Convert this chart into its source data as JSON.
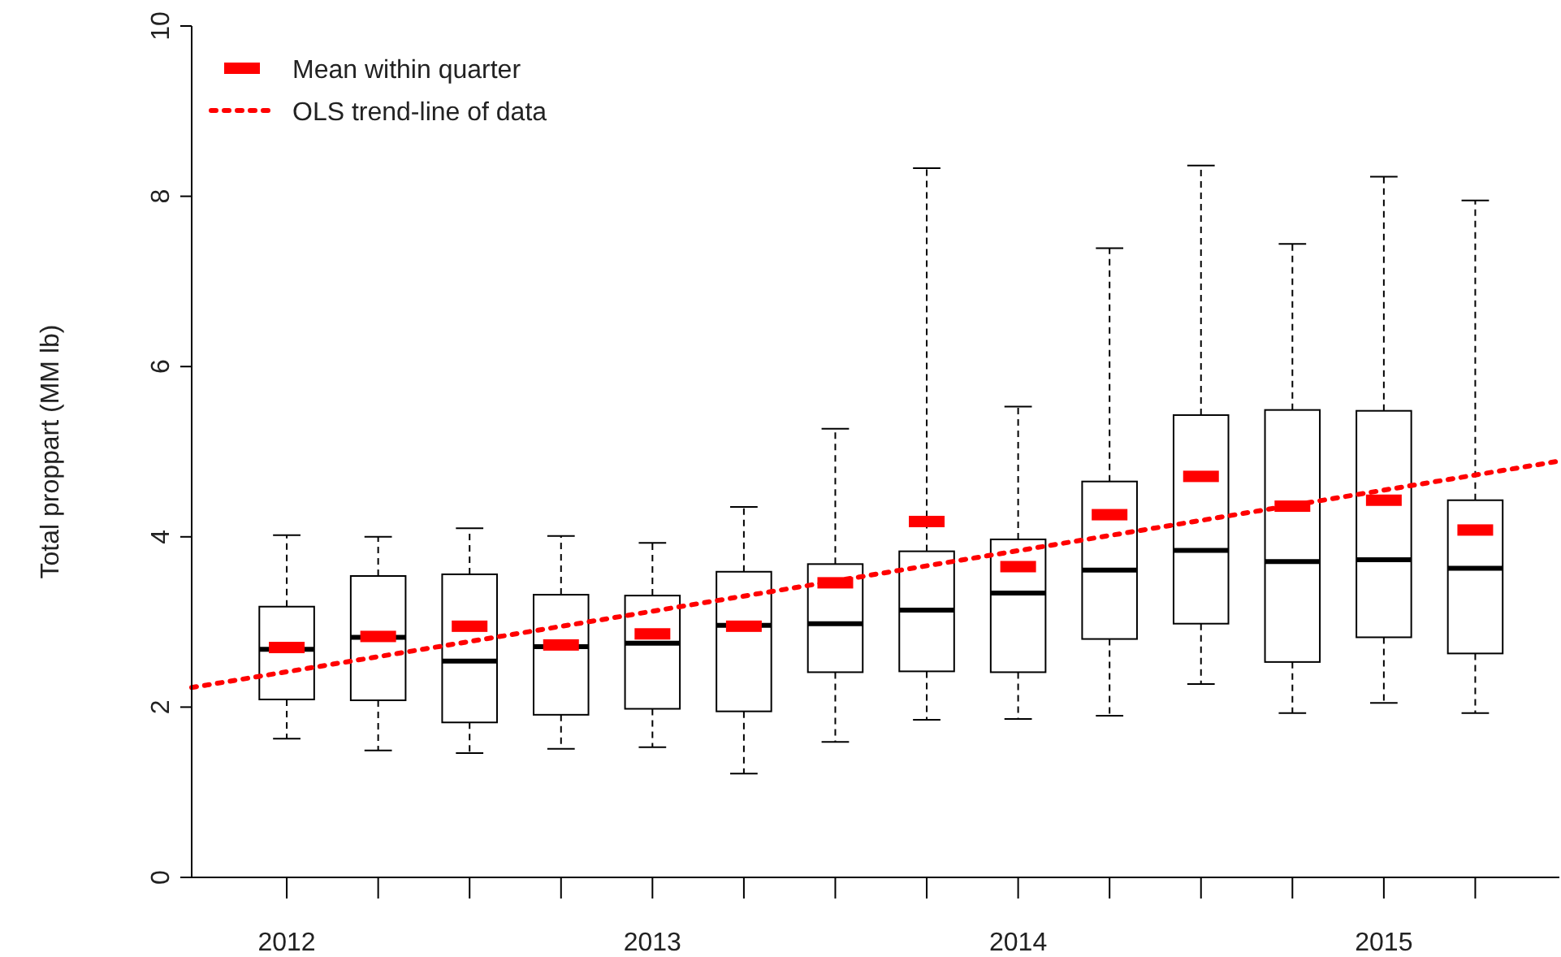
{
  "chart_data": {
    "type": "box",
    "ylabel": "Total proppart (MM lb)",
    "x": [
      2012,
      2012.25,
      2012.5,
      2012.75,
      2013,
      2013.25,
      2013.5,
      2013.75,
      2014,
      2014.25,
      2014.5,
      2014.75,
      2015,
      2015.25
    ],
    "xlim": [
      2011.74,
      2015.48
    ],
    "xticks": [
      2012,
      {
        "value": 2012.25,
        "label": null
      },
      {
        "value": 2012.5,
        "label": null
      },
      {
        "value": 2012.75,
        "label": null
      },
      2013,
      {
        "value": 2013.25,
        "label": null
      },
      {
        "value": 2013.5,
        "label": null
      },
      {
        "value": 2013.75,
        "label": null
      },
      2014,
      {
        "value": 2014.25,
        "label": null
      },
      {
        "value": 2014.5,
        "label": null
      },
      {
        "value": 2014.75,
        "label": null
      },
      2015,
      {
        "value": 2015.25,
        "label": null
      }
    ],
    "ylim": [
      0,
      10
    ],
    "yticks": [
      0,
      2,
      4,
      6,
      8,
      10
    ],
    "boxes": [
      {
        "low": 1.63,
        "q1": 2.09,
        "median": 2.68,
        "q3": 3.18,
        "high": 4.02
      },
      {
        "low": 1.49,
        "q1": 2.08,
        "median": 2.82,
        "q3": 3.54,
        "high": 4.0
      },
      {
        "low": 1.46,
        "q1": 1.82,
        "median": 2.54,
        "q3": 3.56,
        "high": 4.1
      },
      {
        "low": 1.51,
        "q1": 1.91,
        "median": 2.71,
        "q3": 3.32,
        "high": 4.01
      },
      {
        "low": 1.53,
        "q1": 1.98,
        "median": 2.75,
        "q3": 3.31,
        "high": 3.93
      },
      {
        "low": 1.22,
        "q1": 1.95,
        "median": 2.96,
        "q3": 3.59,
        "high": 4.35
      },
      {
        "low": 1.59,
        "q1": 2.41,
        "median": 2.98,
        "q3": 3.68,
        "high": 5.27
      },
      {
        "low": 1.85,
        "q1": 2.42,
        "median": 3.14,
        "q3": 3.83,
        "high": 8.33
      },
      {
        "low": 1.86,
        "q1": 2.41,
        "median": 3.34,
        "q3": 3.97,
        "high": 5.53
      },
      {
        "low": 1.9,
        "q1": 2.8,
        "median": 3.61,
        "q3": 4.65,
        "high": 7.39
      },
      {
        "low": 2.27,
        "q1": 2.98,
        "median": 3.84,
        "q3": 5.43,
        "high": 8.36
      },
      {
        "low": 1.93,
        "q1": 2.53,
        "median": 3.71,
        "q3": 5.49,
        "high": 7.44
      },
      {
        "low": 2.05,
        "q1": 2.82,
        "median": 3.73,
        "q3": 5.48,
        "high": 8.23
      },
      {
        "low": 1.93,
        "q1": 2.63,
        "median": 3.63,
        "q3": 4.43,
        "high": 7.95
      }
    ],
    "color": "#000000",
    "series": [
      {
        "name": "Mean within quarter",
        "type": "scatter",
        "color": "#ff0000",
        "x": [
          2012,
          2012.25,
          2012.5,
          2012.75,
          2013,
          2013.25,
          2013.5,
          2013.75,
          2014,
          2014.25,
          2014.5,
          2014.75,
          2015,
          2015.25
        ],
        "values": [
          2.7,
          2.83,
          2.95,
          2.73,
          2.86,
          2.95,
          3.46,
          4.18,
          3.65,
          4.26,
          4.71,
          4.36,
          4.43,
          4.08
        ]
      },
      {
        "name": "OLS trend-line of data",
        "type": "line",
        "line_style": "dotted",
        "color": "#ff0000",
        "x": [
          2011.74,
          2015.48
        ],
        "values": [
          2.23,
          4.89
        ]
      }
    ],
    "legend": "top left"
  }
}
